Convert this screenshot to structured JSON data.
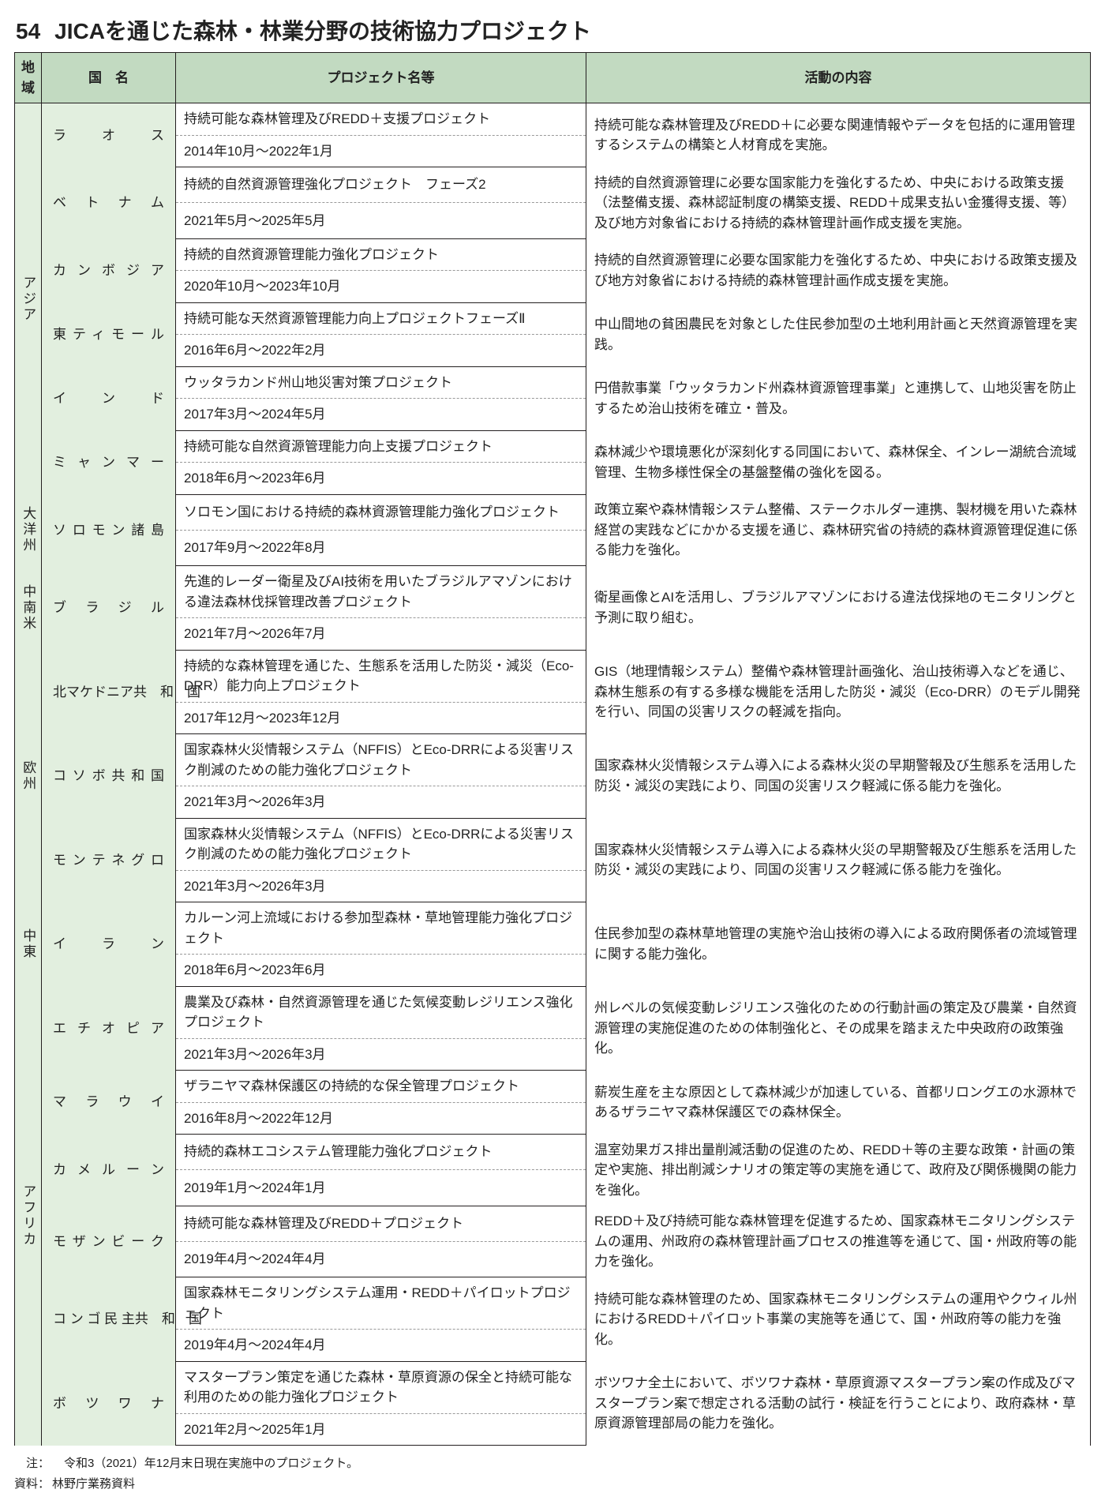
{
  "colors": {
    "header_bg": "#c2dac1",
    "region_bg": "#e2efdf",
    "border": "#231f20",
    "dash": "#999999"
  },
  "title_num": "54",
  "title_text": "JICAを通じた森林・林業分野の技術協力プロジェクト",
  "headers": {
    "region": "地域",
    "country": "国　名",
    "project": "プロジェクト名等",
    "desc": "活動の内容"
  },
  "regions": [
    {
      "name": "アジア",
      "countries": [
        {
          "name": "ラ　オ　ス",
          "project": "持続可能な森林管理及びREDD＋支援プロジェクト",
          "period": "2014年10月～2022年1月",
          "desc": "持続可能な森林管理及びREDD＋に必要な関連情報やデータを包括的に運用管理するシステムの構築と人材育成を実施。"
        },
        {
          "name": "ベ ト ナ ム",
          "project": "持続的自然資源管理強化プロジェクト　フェーズ2",
          "period": "2021年5月～2025年5月",
          "desc": "持続的自然資源管理に必要な国家能力を強化するため、中央における政策支援（法整備支援、森林認証制度の構築支援、REDD＋成果支払い金獲得支援、等）及び地方対象省における持続的森林管理計画作成支援を実施。"
        },
        {
          "name": "カ ン ボ ジ ア",
          "project": "持続的自然資源管理能力強化プロジェクト",
          "period": "2020年10月～2023年10月",
          "desc": "持続的自然資源管理に必要な国家能力を強化するため、中央における政策支援及び地方対象省における持続的森林管理計画作成支援を実施。"
        },
        {
          "name": "東ティモール",
          "project": "持続可能な天然資源管理能力向上プロジェクトフェーズⅡ",
          "period": "2016年6月～2022年2月",
          "desc": "中山間地の貧困農民を対象とした住民参加型の土地利用計画と天然資源管理を実践。"
        },
        {
          "name": "イ　ン　ド",
          "project": "ウッタラカンド州山地災害対策プロジェクト",
          "period": "2017年3月～2024年5月",
          "desc": "円借款事業「ウッタラカンド州森林資源管理事業」と連携して、山地災害を防止するため治山技術を確立・普及。"
        },
        {
          "name": "ミ ャ ン マ ー",
          "project": "持続可能な自然資源管理能力向上支援プロジェクト",
          "period": "2018年6月～2023年6月",
          "desc": "森林減少や環境悪化が深刻化する同国において、森林保全、インレー湖統合流域管理、生物多様性保全の基盤整備の強化を図る。"
        }
      ]
    },
    {
      "name": "大洋州",
      "countries": [
        {
          "name": "ソロモン諸島",
          "project": "ソロモン国における持続的森林資源管理能力強化プロジェクト",
          "period": "2017年9月～2022年8月",
          "desc": "政策立案や森林情報システム整備、ステークホルダー連携、製材機を用いた森林経営の実践などにかかる支援を通じ、森林研究省の持続的森林資源管理促進に係る能力を強化。"
        }
      ]
    },
    {
      "name": "中南米",
      "countries": [
        {
          "name": "ブ ラ ジ ル",
          "project": "先進的レーダー衛星及びAI技術を用いたブラジルアマゾンにおける違法森林伐採管理改善プロジェクト",
          "period": "2021年7月～2026年7月",
          "desc": "衛星画像とAIを活用し、ブラジルアマゾンにおける違法伐採地のモニタリングと予測に取り組む。"
        }
      ]
    },
    {
      "name": "欧州",
      "countries": [
        {
          "name": "北マケドニア共　和　国",
          "project": "持続的な森林管理を通じた、生態系を活用した防災・減災（Eco-DRR）能力向上プロジェクト",
          "period": "2017年12月～2023年12月",
          "desc": "GIS（地理情報システム）整備や森林管理計画強化、治山技術導入などを通じ、森林生態系の有する多様な機能を活用した防災・減災（Eco-DRR）のモデル開発を行い、同国の災害リスクの軽減を指向。"
        },
        {
          "name": "コソボ共和国",
          "project": "国家森林火災情報システム（NFFIS）とEco-DRRによる災害リスク削減のための能力強化プロジェクト",
          "period": "2021年3月～2026年3月",
          "desc": "国家森林火災情報システム導入による森林火災の早期警報及び生態系を活用した防災・減災の実践により、同国の災害リスク軽減に係る能力を強化。"
        },
        {
          "name": "モンテネグロ",
          "project": "国家森林火災情報システム（NFFIS）とEco-DRRによる災害リスク削減のための能力強化プロジェクト",
          "period": "2021年3月～2026年3月",
          "desc": "国家森林火災情報システム導入による森林火災の早期警報及び生態系を活用した防災・減災の実践により、同国の災害リスク軽減に係る能力を強化。"
        }
      ]
    },
    {
      "name": "中東",
      "countries": [
        {
          "name": "イ　ラ　ン",
          "project": "カルーン河上流域における参加型森林・草地管理能力強化プロジェクト",
          "period": "2018年6月～2023年6月",
          "desc": "住民参加型の森林草地管理の実施や治山技術の導入による政府関係者の流域管理に関する能力強化。"
        }
      ]
    },
    {
      "name": "アフリカ",
      "countries": [
        {
          "name": "エ チ オ ピ ア",
          "project": "農業及び森林・自然資源管理を通じた気候変動レジリエンス強化プロジェクト",
          "period": "2021年3月～2026年3月",
          "desc": "州レベルの気候変動レジリエンス強化のための行動計画の策定及び農業・自然資源管理の実施促進のための体制強化と、その成果を踏まえた中央政府の政策強化。"
        },
        {
          "name": "マ ラ ウ イ",
          "project": "ザラニヤマ森林保護区の持続的な保全管理プロジェクト",
          "period": "2016年8月～2022年12月",
          "desc": "薪炭生産を主な原因として森林減少が加速している、首都リロングエの水源林であるザラニヤマ森林保護区での森林保全。"
        },
        {
          "name": "カ メ ル ー ン",
          "project": "持続的森林エコシステム管理能力強化プロジェクト",
          "period": "2019年1月～2024年1月",
          "desc": "温室効果ガス排出量削減活動の促進のため、REDD＋等の主要な政策・計画の策定や実施、排出削減シナリオの策定等の実施を通じて、政府及び関係機関の能力を強化。"
        },
        {
          "name": "モザンビーク",
          "project": "持続可能な森林管理及びREDD＋プロジェクト",
          "period": "2019年4月～2024年4月",
          "desc": "REDD＋及び持続可能な森林管理を促進するため、国家森林モニタリングシステムの運用、州政府の森林管理計画プロセスの推進等を通じて、国・州政府等の能力を強化。"
        },
        {
          "name": "コ ン ゴ 民 主共　和　国",
          "project": "国家森林モニタリングシステム運用・REDD＋パイロットプロジェクト",
          "period": "2019年4月～2024年4月",
          "desc": "持続可能な森林管理のため、国家森林モニタリングシステムの運用やクウィル州におけるREDD＋パイロット事業の実施等を通じて、国・州政府等の能力を強化。"
        },
        {
          "name": "ボ ツ ワ ナ",
          "project": "マスタープラン策定を通じた森林・草原資源の保全と持続可能な利用のための能力強化プロジェクト",
          "period": "2021年2月～2025年1月",
          "desc": "ボツワナ全土において、ボツワナ森林・草原資源マスタープラン案の作成及びマスタープラン案で想定される活動の試行・検証を行うことにより、政府森林・草原資源管理部局の能力を強化。"
        }
      ]
    }
  ],
  "note1_label": "注：",
  "note1": "令和3（2021）年12月末日現在実施中のプロジェクト。",
  "note2_label": "資料：",
  "note2": "林野庁業務資料"
}
